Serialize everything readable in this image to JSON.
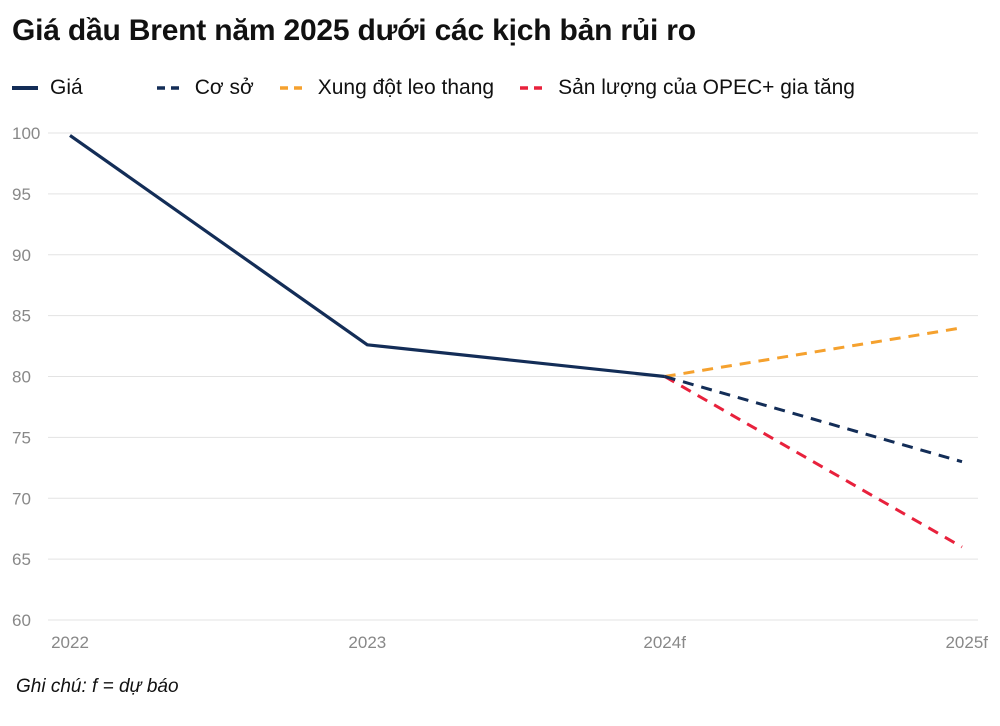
{
  "chart_data": {
    "type": "line",
    "title": "Giá dầu Brent năm 2025 dưới các kịch bản rủi ro",
    "categories": [
      "2022",
      "2023",
      "2024f",
      "2025f"
    ],
    "series": [
      {
        "name": "Giá",
        "color": "#132d57",
        "style": "solid",
        "values": [
          99.8,
          82.6,
          80,
          null
        ]
      },
      {
        "name": "Cơ sở",
        "color": "#132d57",
        "style": "dashed",
        "values": [
          null,
          null,
          80,
          73
        ]
      },
      {
        "name": "Xung đột leo thang",
        "color": "#f5a12e",
        "style": "dashed",
        "values": [
          null,
          null,
          80,
          84
        ]
      },
      {
        "name": "Sản lượng của OPEC+ gia tăng",
        "color": "#e8213c",
        "style": "dashed",
        "values": [
          null,
          null,
          80,
          66
        ]
      }
    ],
    "yticks": [
      "100",
      "95",
      "90",
      "85",
      "80",
      "75",
      "70",
      "65",
      "60"
    ],
    "ylim": [
      60,
      100
    ],
    "grid": true,
    "legend_position": "top-left",
    "note": "Ghi chú: f = dự báo"
  }
}
